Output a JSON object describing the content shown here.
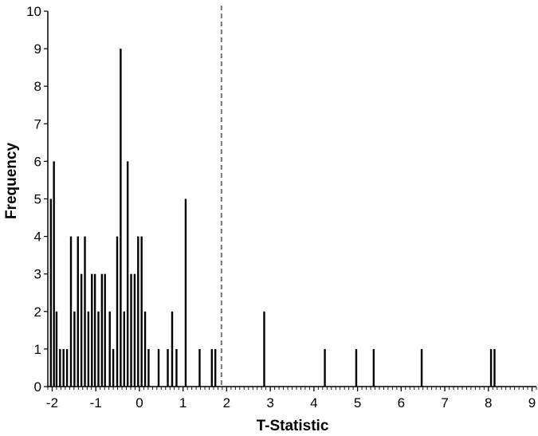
{
  "chart_data": {
    "type": "bar",
    "xlabel": "T-Statistic",
    "ylabel": "Frequency",
    "xlim": [
      -2.1,
      9.1
    ],
    "ylim": [
      0,
      10
    ],
    "x_ticks": [
      -2,
      -1,
      0,
      1,
      2,
      3,
      4,
      5,
      6,
      7,
      8,
      9
    ],
    "y_ticks": [
      0,
      1,
      2,
      3,
      4,
      5,
      6,
      7,
      8,
      9,
      10
    ],
    "grid": false,
    "legend": "none",
    "threshold_line": {
      "x": 1.88,
      "style": "dashed",
      "color": "#777777"
    },
    "bar_color": "#000000",
    "bars": [
      {
        "x": -2.03,
        "y": 5
      },
      {
        "x": -1.96,
        "y": 6
      },
      {
        "x": -1.9,
        "y": 2
      },
      {
        "x": -1.82,
        "y": 1
      },
      {
        "x": -1.74,
        "y": 1
      },
      {
        "x": -1.66,
        "y": 1
      },
      {
        "x": -1.57,
        "y": 4
      },
      {
        "x": -1.49,
        "y": 2
      },
      {
        "x": -1.41,
        "y": 4
      },
      {
        "x": -1.33,
        "y": 3
      },
      {
        "x": -1.25,
        "y": 4
      },
      {
        "x": -1.17,
        "y": 2
      },
      {
        "x": -1.09,
        "y": 3
      },
      {
        "x": -1.02,
        "y": 3
      },
      {
        "x": -0.94,
        "y": 2
      },
      {
        "x": -0.86,
        "y": 3
      },
      {
        "x": -0.79,
        "y": 3
      },
      {
        "x": -0.68,
        "y": 2
      },
      {
        "x": -0.6,
        "y": 1
      },
      {
        "x": -0.51,
        "y": 4
      },
      {
        "x": -0.43,
        "y": 9
      },
      {
        "x": -0.35,
        "y": 2
      },
      {
        "x": -0.27,
        "y": 6
      },
      {
        "x": -0.19,
        "y": 3
      },
      {
        "x": -0.11,
        "y": 3
      },
      {
        "x": -0.03,
        "y": 4
      },
      {
        "x": 0.05,
        "y": 4
      },
      {
        "x": 0.13,
        "y": 2
      },
      {
        "x": 0.21,
        "y": 1
      },
      {
        "x": 0.44,
        "y": 1
      },
      {
        "x": 0.65,
        "y": 1
      },
      {
        "x": 0.75,
        "y": 2
      },
      {
        "x": 0.85,
        "y": 1
      },
      {
        "x": 1.06,
        "y": 5
      },
      {
        "x": 1.38,
        "y": 1
      },
      {
        "x": 1.66,
        "y": 1
      },
      {
        "x": 1.74,
        "y": 1
      },
      {
        "x": 2.86,
        "y": 2
      },
      {
        "x": 4.25,
        "y": 1
      },
      {
        "x": 4.97,
        "y": 1
      },
      {
        "x": 5.37,
        "y": 1
      },
      {
        "x": 6.47,
        "y": 1
      },
      {
        "x": 8.06,
        "y": 1
      },
      {
        "x": 8.14,
        "y": 1
      }
    ]
  }
}
